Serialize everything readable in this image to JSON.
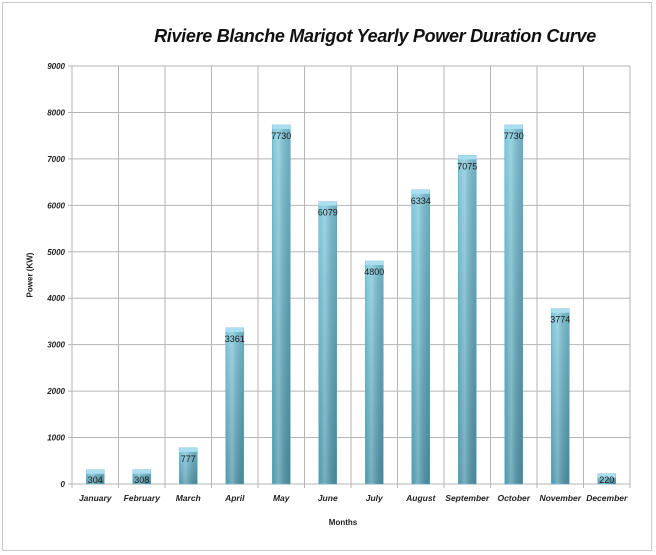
{
  "chart_data": {
    "type": "bar",
    "title": "Riviere Blanche Marigot Yearly Power Duration Curve",
    "xlabel": "Months",
    "ylabel": "Power (KW)",
    "categories": [
      "January",
      "February",
      "March",
      "April",
      "May",
      "June",
      "July",
      "August",
      "September",
      "October",
      "November",
      "December"
    ],
    "values": [
      304,
      308,
      777,
      3361,
      7730,
      6079,
      4800,
      6334,
      7075,
      7730,
      3774,
      220
    ],
    "data_labels": [
      "304",
      "308",
      "777",
      "3361",
      "7730",
      "6079",
      "4800",
      "6334",
      "7075",
      "7730",
      "3774",
      "220"
    ],
    "ylim": [
      0,
      9000
    ],
    "yticks": [
      0,
      1000,
      2000,
      3000,
      4000,
      5000,
      6000,
      7000,
      8000,
      9000
    ],
    "ytick_labels": [
      "0",
      "1000",
      "2000",
      "3000",
      "4000",
      "5000",
      "6000",
      "7000",
      "8000",
      "9000"
    ],
    "grid": true,
    "bar_color": "#7ec8dc",
    "bar_color_dark": "#4e97ab"
  }
}
